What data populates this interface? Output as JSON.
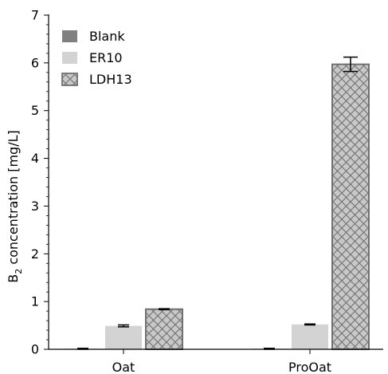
{
  "chart_data": {
    "type": "bar",
    "categories": [
      "Oat",
      "ProOat"
    ],
    "series": [
      {
        "name": "Blank",
        "values": [
          0.01,
          0.01
        ],
        "errors": [
          0.01,
          0.01
        ],
        "color": "#808080",
        "pattern": "solid"
      },
      {
        "name": "ER10",
        "values": [
          0.49,
          0.52
        ],
        "errors": [
          0.02,
          0.01
        ],
        "color": "#d3d3d3",
        "pattern": "solid"
      },
      {
        "name": "LDH13",
        "values": [
          0.84,
          5.97
        ],
        "errors": [
          0.01,
          0.15
        ],
        "color": "#c0c0c0",
        "pattern": "crosshatch",
        "edge_color": "#707070"
      }
    ],
    "ylabel_main": "B",
    "ylabel_sub": "2",
    "ylabel_rest": " concentration [mg/L]",
    "xlabel": "",
    "title": "",
    "ylim": [
      0,
      7
    ],
    "yticks": [
      "0",
      "1",
      "2",
      "3",
      "4",
      "5",
      "6",
      "7"
    ],
    "ytick_values": [
      0,
      1,
      2,
      3,
      4,
      5,
      6,
      7
    ],
    "minor_ticks": true,
    "grid": false,
    "legend_position": "top-left"
  }
}
